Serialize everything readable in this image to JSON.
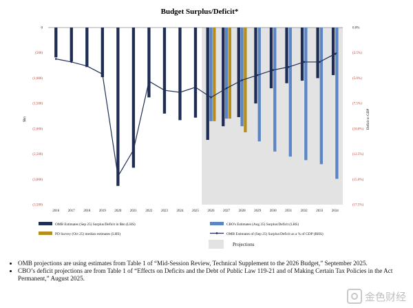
{
  "chart_data": {
    "type": "bar",
    "title": "Budget Surplus/Deficit*",
    "ylabel_left": "$bn",
    "ylabel_right": "Deficit to GDP",
    "categories": [
      "2016",
      "2017",
      "2018",
      "2019",
      "2020",
      "2021",
      "2022",
      "2023",
      "2024",
      "2025",
      "2026",
      "2027",
      "2028",
      "2029",
      "2030",
      "2031",
      "2032",
      "2033",
      "2034"
    ],
    "ylim_left": [
      -3500,
      0
    ],
    "yticks_left": [
      "0",
      "(500)",
      "(1,000)",
      "(1,500)",
      "(2,000)",
      "(2,500)",
      "(3,000)",
      "(3,500)"
    ],
    "ylim_right": [
      -17.5,
      0
    ],
    "yticks_right": [
      "0.0%",
      "(2.5%)",
      "(5.0%)",
      "(7.5%)",
      "(10.0%)",
      "(12.5%)",
      "(15.0%)",
      "(17.5%)"
    ],
    "projection_start": "2026",
    "series": [
      {
        "name": "OMB Estimates (Sep 25) Surplus/Deficit in $bn (LHS)",
        "color": "#1f2d55",
        "values": [
          -590,
          -670,
          -780,
          -980,
          -3130,
          -2770,
          -1380,
          -1700,
          -1830,
          -1780,
          -2220,
          -1950,
          -1770,
          -1500,
          -1200,
          -1100,
          -1050,
          -1000,
          -940
        ]
      },
      {
        "name": "CBO's Estimates (Aug 25) Surplus/Deficit (LHS)",
        "color": "#5b86c5",
        "values": [
          null,
          null,
          null,
          null,
          null,
          null,
          null,
          null,
          null,
          null,
          -1850,
          -1800,
          -1950,
          -2250,
          -2450,
          -2550,
          -2620,
          -2700,
          -2990
        ]
      },
      {
        "name": "PD Survey (Oct 25) median estimates (LHS)",
        "color": "#b58e1c",
        "values": [
          null,
          null,
          null,
          null,
          null,
          null,
          null,
          null,
          null,
          null,
          -1850,
          -1800,
          -2070,
          null,
          null,
          null,
          null,
          null,
          null
        ]
      },
      {
        "name": "OMB Estimates of (Sep 25) Surplus/Deficit as a % of GDP (RHS)",
        "color": "#1f2d55",
        "values": [
          -3.1,
          -3.4,
          -3.8,
          -4.6,
          -14.7,
          -12.1,
          -5.3,
          -6.2,
          -6.4,
          -5.9,
          -6.9,
          -6.0,
          -5.2,
          -4.7,
          -4.2,
          -3.9,
          -3.4,
          -3.4,
          -2.6
        ]
      }
    ],
    "projections_label": "Projections"
  },
  "notes": [
    "OMB projections are using estimates from Table 1 of “Mid-Session Review, Technical Supplement to the 2026 Budget,” September 2025.",
    "CBO’s deficit projections are from Table 1 of “Effects on Deficits and the Debt of Public Law 119-21 and of Making Certain Tax Policies in the Act Permanent,” August 2025."
  ],
  "watermark": "金色财经"
}
